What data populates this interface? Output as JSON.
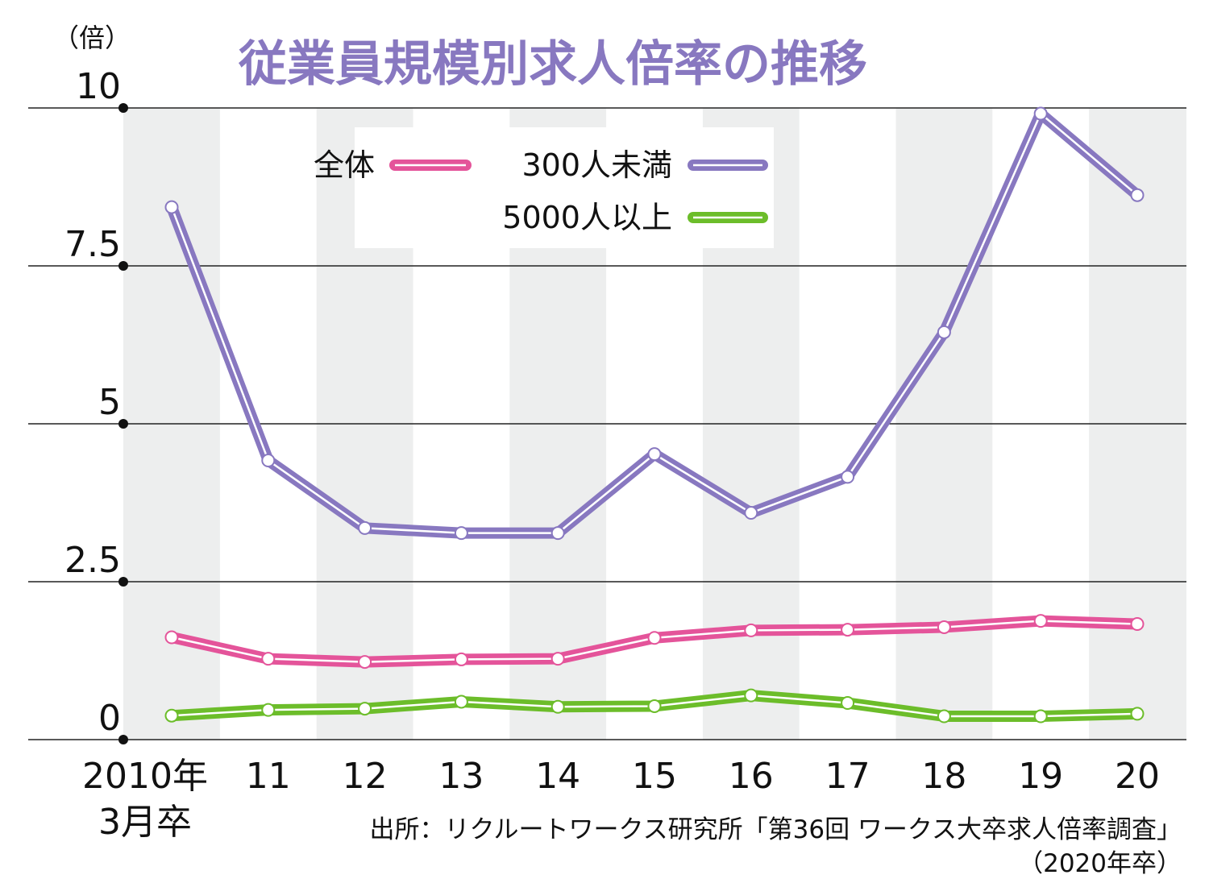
{
  "chart_data": {
    "type": "line",
    "title": "従業員規模別求人倍率の推移",
    "unit_label": "（倍）",
    "categories": [
      "2010年",
      "11",
      "12",
      "13",
      "14",
      "15",
      "16",
      "17",
      "18",
      "19",
      "20"
    ],
    "first_category_sublabel": "3月卒",
    "y_ticks": [
      "10",
      "7.5",
      "5",
      "2.5",
      "0"
    ],
    "ylim": [
      0,
      10
    ],
    "grid": true,
    "legend_position": "top",
    "series": [
      {
        "name": "全体",
        "color": "#e4549a",
        "values": [
          1.62,
          1.28,
          1.23,
          1.27,
          1.28,
          1.61,
          1.73,
          1.74,
          1.78,
          1.88,
          1.83
        ]
      },
      {
        "name": "300人未満",
        "color": "#8878c0",
        "values": [
          8.43,
          4.42,
          3.35,
          3.27,
          3.27,
          4.52,
          3.59,
          4.16,
          6.45,
          9.91,
          8.62
        ]
      },
      {
        "name": "5000人以上",
        "color": "#6cbd2a",
        "values": [
          0.38,
          0.47,
          0.49,
          0.6,
          0.52,
          0.53,
          0.7,
          0.58,
          0.37,
          0.37,
          0.41
        ]
      }
    ],
    "source": "出所：リクルートワークス研究所「第36回 ワークス大卒求人倍率調査」",
    "source_note": "（2020年卒）"
  },
  "colors": {
    "title": "#8878c0",
    "band": "#edeeee",
    "gridline": "#222222"
  }
}
